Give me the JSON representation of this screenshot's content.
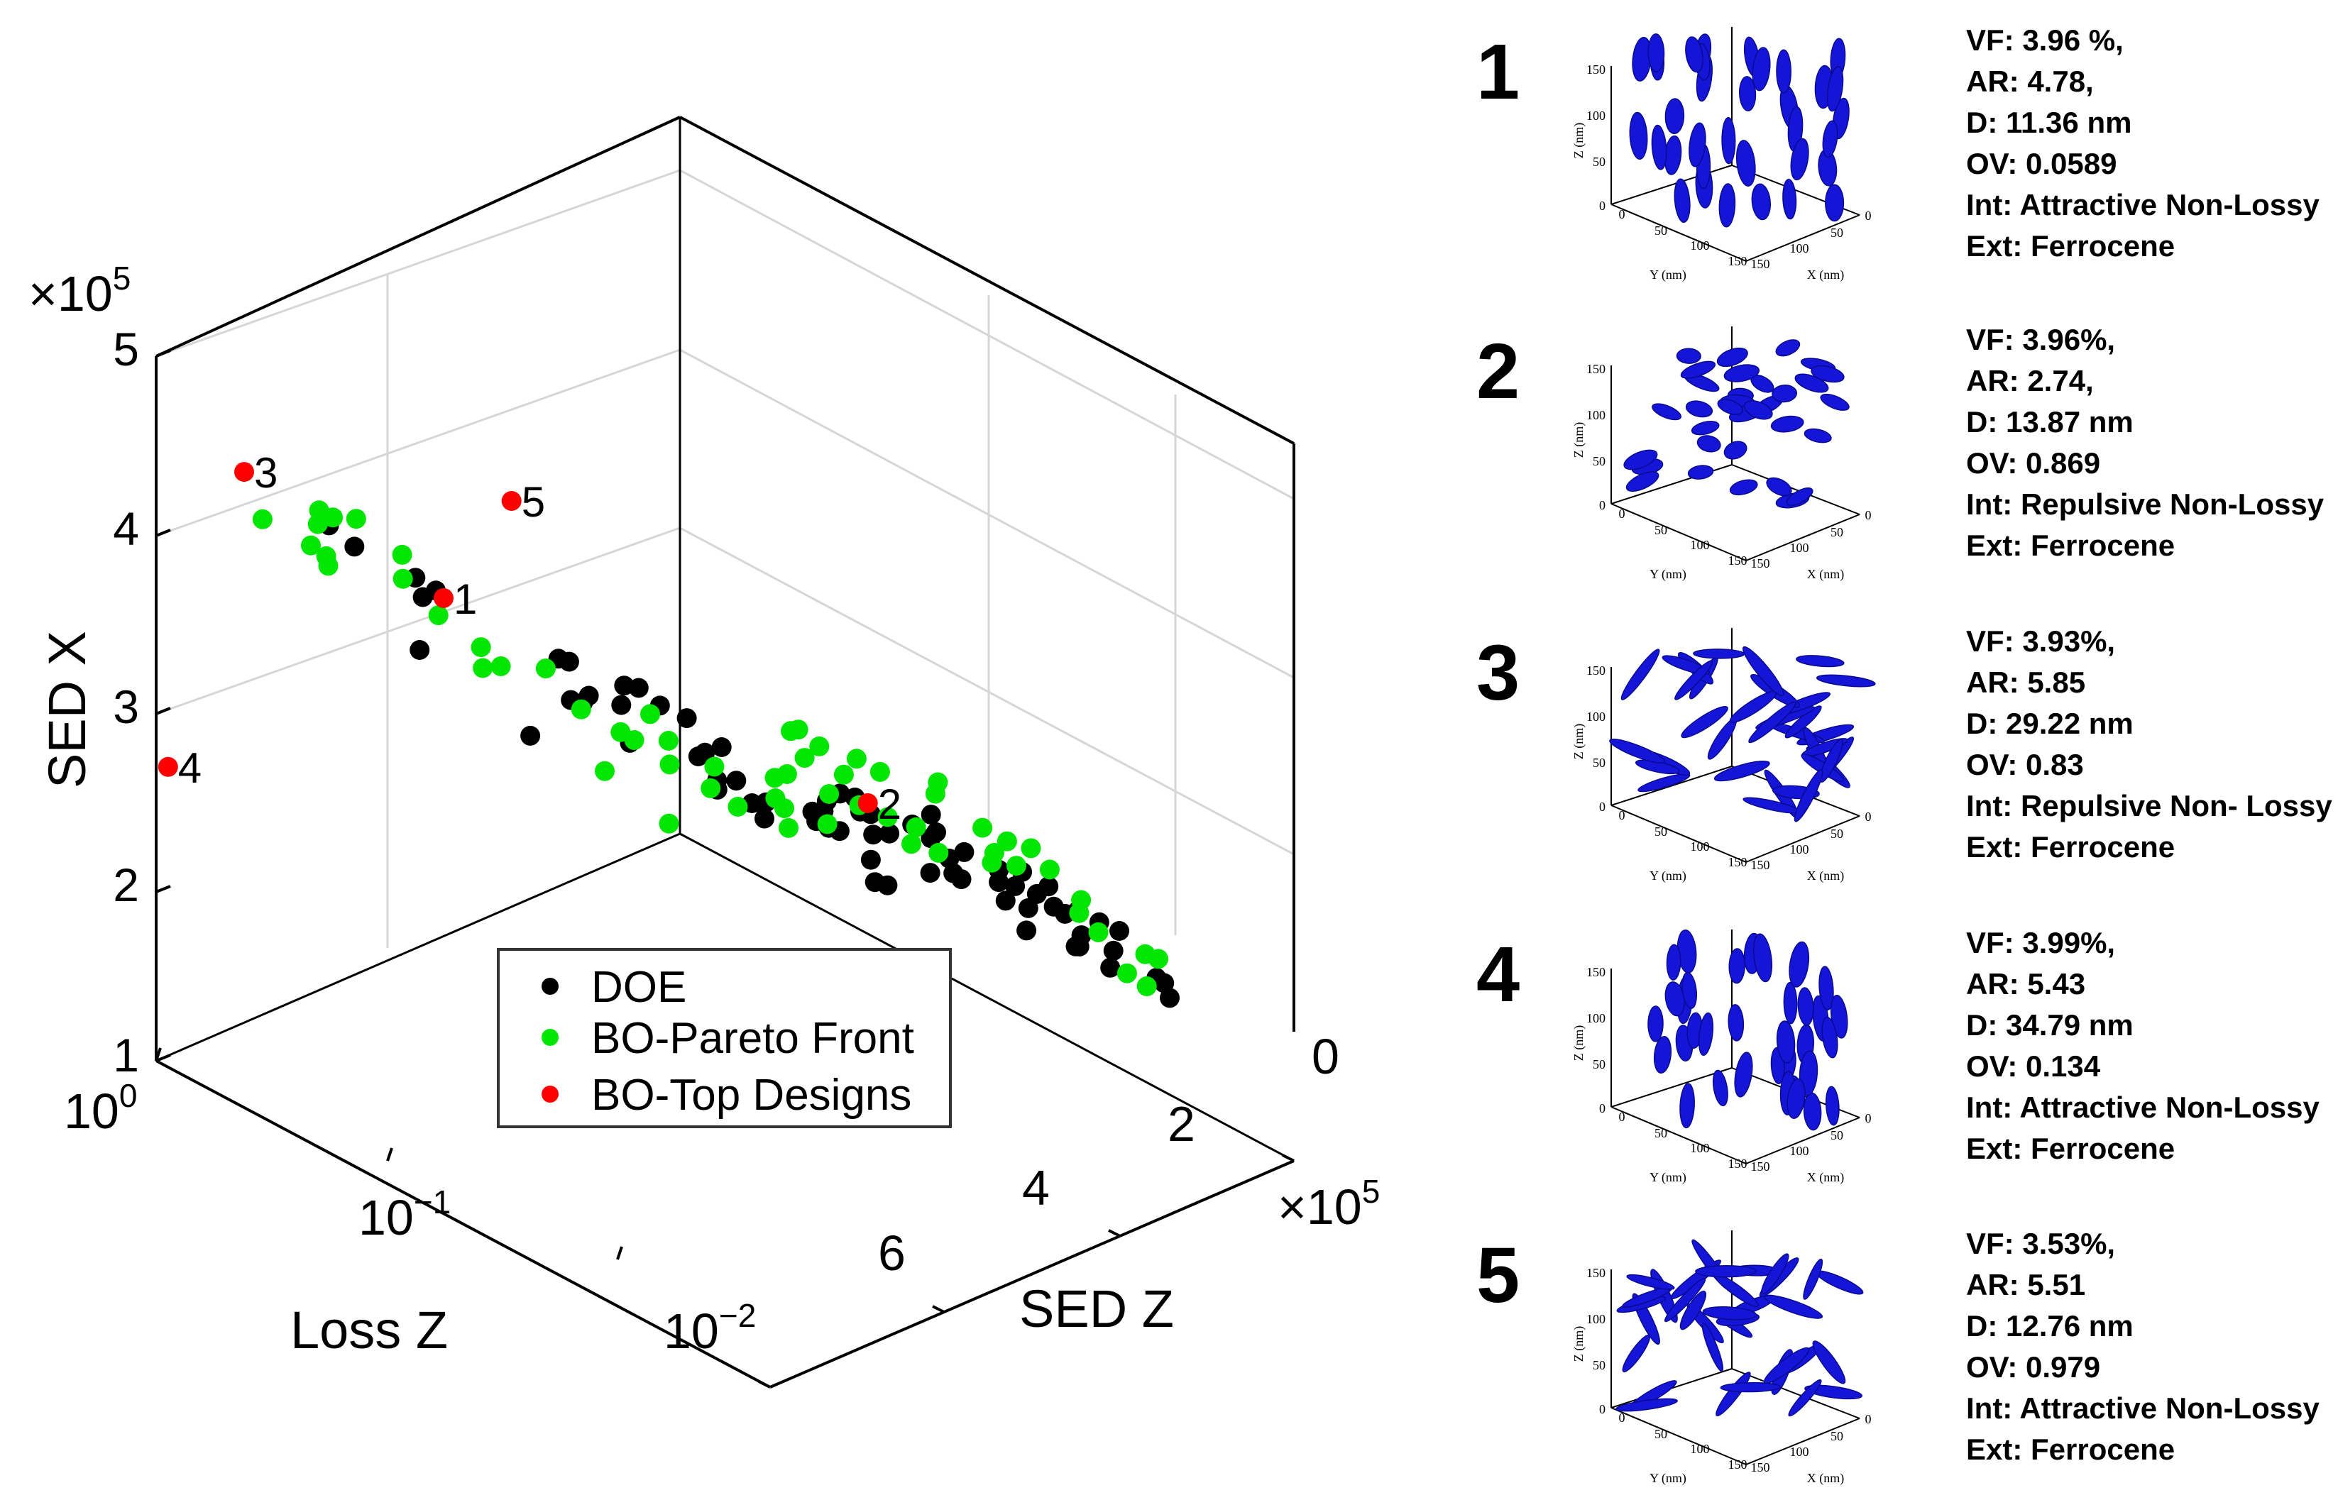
{
  "chart_data": {
    "type": "scatter",
    "dimensions": "3d",
    "axes": {
      "x": {
        "label": "Loss Z",
        "scale": "log",
        "range": [
          0.01,
          1
        ],
        "tick_labels": [
          "10^0",
          "10^-1",
          "10^-2"
        ]
      },
      "y": {
        "label": "SED Z",
        "scale": "linear",
        "range": [
          0,
          7
        ],
        "tick_labels": [
          "0",
          "2",
          "4",
          "6"
        ],
        "multiplier": "×10^5"
      },
      "z": {
        "label": "SED X",
        "scale": "linear",
        "range": [
          1,
          5
        ],
        "tick_labels": [
          "1",
          "2",
          "3",
          "4",
          "5"
        ],
        "multiplier": "×10^5"
      }
    },
    "grid": true,
    "legend": [
      "DOE",
      "BO-Pareto Front",
      "BO-Top Designs"
    ],
    "series": [
      {
        "name": "DOE",
        "color": "#000000",
        "points": [
          [
            0.0313,
            5.43,
            2.19
          ],
          [
            0.0203,
            5.86,
            2.07
          ],
          [
            0.0223,
            5.43,
            2.19
          ],
          [
            0.0181,
            6.29,
            1.97
          ],
          [
            0.0192,
            6.43,
            1.94
          ],
          [
            0.0185,
            6.23,
            1.99
          ],
          [
            0.0242,
            5.7,
            2.1
          ],
          [
            0.0239,
            5.2,
            2.26
          ],
          [
            0.026,
            5.06,
            2.29
          ],
          [
            0.0292,
            4.63,
            2.4
          ],
          [
            0.027,
            5.26,
            2.23
          ],
          [
            0.028,
            4.97,
            2.31
          ],
          [
            0.025,
            5.7,
            2.11
          ],
          [
            0.0229,
            5.98,
            2.04
          ],
          [
            0.0227,
            5.64,
            2.13
          ],
          [
            0.0228,
            5.33,
            2.21
          ],
          [
            0.0263,
            4.89,
            2.34
          ],
          [
            0.0228,
            4.97,
            2.31
          ],
          [
            0.0211,
            5.17,
            2.26
          ],
          [
            0.0188,
            5.6,
            2.14
          ],
          [
            0.0201,
            5.44,
            2.18
          ],
          [
            0.0173,
            5.72,
            2.1
          ],
          [
            0.0308,
            4.38,
            2.46
          ],
          [
            0.0287,
            4.23,
            2.5
          ],
          [
            0.0328,
            4.4,
            2.45
          ],
          [
            0.0415,
            4.02,
            2.55
          ],
          [
            0.0344,
            4.25,
            2.5
          ],
          [
            0.0417,
            4.24,
            2.5
          ],
          [
            0.0418,
            3.85,
            2.6
          ],
          [
            0.0333,
            4.63,
            2.4
          ],
          [
            0.0349,
            4.83,
            2.35
          ],
          [
            0.0296,
            5.12,
            2.26
          ],
          [
            0.0441,
            3.98,
            2.57
          ],
          [
            0.0448,
            3.77,
            2.62
          ],
          [
            0.0463,
            4.19,
            2.51
          ],
          [
            0.0409,
            4.68,
            2.39
          ],
          [
            0.0355,
            4.76,
            2.37
          ],
          [
            0.0543,
            4.37,
            2.46
          ],
          [
            0.0511,
            3.79,
            2.62
          ],
          [
            0.0554,
            4.04,
            2.54
          ],
          [
            0.0551,
            3.85,
            2.6
          ],
          [
            0.0586,
            3.99,
            2.56
          ],
          [
            0.0615,
            3.91,
            2.59
          ],
          [
            0.0594,
            3.82,
            2.61
          ],
          [
            0.0573,
            4.63,
            2.4
          ],
          [
            0.0611,
            4.57,
            2.42
          ],
          [
            0.0754,
            3.6,
            2.67
          ],
          [
            0.0826,
            3.56,
            2.68
          ],
          [
            0.0801,
            3.34,
            2.74
          ],
          [
            0.0838,
            3.72,
            2.64
          ],
          [
            0.0905,
            3.28,
            2.76
          ],
          [
            0.0837,
            3.04,
            2.83
          ],
          [
            0.0952,
            3.35,
            2.74
          ],
          [
            0.0734,
            3.06,
            2.83
          ],
          [
            0.0773,
            2.73,
            2.92
          ],
          [
            0.0894,
            3.05,
            2.83
          ],
          [
            0.0852,
            2.55,
            2.97
          ],
          [
            0.0887,
            2.36,
            3.03
          ],
          [
            0.0963,
            2.3,
            3.05
          ],
          [
            0.1091,
            2.43,
            3.01
          ],
          [
            0.121,
            1.97,
            3.16
          ],
          [
            0.1275,
            2.73,
            2.92
          ],
          [
            0.126,
            1.9,
            3.17
          ],
          [
            0.1273,
            2.26,
            3.06
          ],
          [
            0.1371,
            2.29,
            3.05
          ],
          [
            0.1469,
            2.24,
            3.07
          ],
          [
            0.2174,
            1.21,
            3.52
          ],
          [
            0.2318,
            2.37,
            3.03
          ],
          [
            0.2354,
            1.08,
            3.58
          ],
          [
            0.2458,
            1.22,
            3.52
          ],
          [
            0.3097,
            0.74,
            3.74
          ],
          [
            0.316,
            1.51,
            3.37
          ],
          [
            0.3395,
            0.57,
            3.84
          ]
        ]
      },
      {
        "name": "BO-Pareto Front",
        "color": "#00e600",
        "points": [
          [
            0.0162,
            6.08,
            2.02
          ],
          [
            0.0171,
            6.0,
            2.04
          ],
          [
            0.0206,
            6.26,
            1.98
          ],
          [
            0.0215,
            6.09,
            2.02
          ],
          [
            0.0182,
            5.35,
            2.19
          ],
          [
            0.0186,
            5.02,
            2.28
          ],
          [
            0.0197,
            5.65,
            2.11
          ],
          [
            0.0208,
            4.68,
            2.38
          ],
          [
            0.02,
            5.45,
            2.17
          ],
          [
            0.0242,
            4.73,
            2.37
          ],
          [
            0.0229,
            4.91,
            2.33
          ],
          [
            0.0188,
            4.82,
            2.35
          ],
          [
            0.0225,
            4.5,
            2.43
          ],
          [
            0.0259,
            4.79,
            2.35
          ],
          [
            0.0248,
            4.09,
            2.54
          ],
          [
            0.0228,
            4.01,
            2.56
          ],
          [
            0.0344,
            4.55,
            2.42
          ],
          [
            0.0335,
            4.26,
            2.48
          ],
          [
            0.0386,
            4.39,
            2.46
          ],
          [
            0.038,
            4.1,
            2.53
          ],
          [
            0.0425,
            3.92,
            2.58
          ],
          [
            0.0308,
            3.74,
            2.63
          ],
          [
            0.0395,
            3.65,
            2.66
          ],
          [
            0.0332,
            3.57,
            2.68
          ],
          [
            0.0392,
            3.36,
            2.74
          ],
          [
            0.0404,
            3.16,
            2.79
          ],
          [
            0.046,
            3.4,
            2.73
          ],
          [
            0.0432,
            3.16,
            2.8
          ],
          [
            0.0482,
            3.74,
            2.63
          ],
          [
            0.0562,
            3.46,
            2.71
          ],
          [
            0.0617,
            3.44,
            2.71
          ],
          [
            0.0694,
            3.6,
            2.67
          ],
          [
            0.058,
            3.96,
            2.57
          ],
          [
            0.0693,
            3.7,
            2.64
          ],
          [
            0.0761,
            3.87,
            2.6
          ],
          [
            0.0865,
            3.19,
            2.8
          ],
          [
            0.0929,
            3.55,
            2.69
          ],
          [
            0.095,
            2.58,
            2.96
          ],
          [
            0.0988,
            3.32,
            2.75
          ],
          [
            0.0988,
            2.84,
            2.89
          ],
          [
            0.1124,
            3.02,
            2.84
          ],
          [
            0.1217,
            2.72,
            2.92
          ],
          [
            0.1271,
            2.62,
            2.95
          ],
          [
            0.1441,
            1.93,
            3.16
          ],
          [
            0.1448,
            2.34,
            3.04
          ],
          [
            0.1587,
            3.46,
            2.72
          ],
          [
            0.1745,
            2.85,
            2.88
          ],
          [
            0.2149,
            1.73,
            3.22
          ],
          [
            0.1906,
            1.78,
            3.21
          ],
          [
            0.1945,
            1.58,
            3.27
          ],
          [
            0.2209,
            1.26,
            3.4
          ],
          [
            0.2284,
            0.89,
            3.65
          ],
          [
            0.2566,
            1.05,
            3.59
          ],
          [
            0.2716,
            0.59,
            3.82
          ],
          [
            0.3205,
            0.54,
            3.86
          ],
          [
            0.343,
            0.47,
            3.9
          ],
          [
            0.3659,
            0.54,
            3.86
          ],
          [
            0.3937,
            0.73,
            3.75
          ],
          [
            0.4048,
            0.79,
            3.72
          ],
          [
            0.417,
            0.63,
            3.8
          ],
          [
            0.5219,
            0.37,
            3.94
          ]
        ]
      },
      {
        "name": "BO-Top Designs",
        "color": "#ff0000",
        "points": [
          {
            "label": "1",
            "values": [
              0.2,
              1.19,
              3.45
            ]
          },
          {
            "label": "2",
            "values": [
              0.04,
              3.94,
              2.58
            ]
          },
          {
            "label": "3",
            "values": [
              0.5138,
              0.14,
              4.14
            ]
          },
          {
            "label": "4",
            "values": [
              0.9434,
              0.06,
              2.64
            ]
          },
          {
            "label": "5",
            "values": [
              0.1198,
              1.3,
              3.88
            ]
          }
        ]
      }
    ]
  },
  "panels": [
    {
      "number": "1",
      "vf": "VF: 3.96 %,",
      "ar": "AR: 4.78,",
      "d": "D: 11.36 nm",
      "ov": "OV: 0.0589",
      "int": "Int: Attractive Non-Lossy",
      "ext": "Ext: Ferrocene"
    },
    {
      "number": "2",
      "vf": "VF: 3.96%,",
      "ar": "AR: 2.74,",
      "d": "D: 13.87 nm",
      "ov": "OV: 0.869",
      "int": "Int: Repulsive Non-Lossy",
      "ext": "Ext: Ferrocene"
    },
    {
      "number": "3",
      "vf": "VF: 3.93%,",
      "ar": "AR: 5.85",
      "d": "D: 29.22 nm",
      "ov": "OV: 0.83",
      "int": "Int: Repulsive Non- Lossy",
      "ext": "Ext: Ferrocene"
    },
    {
      "number": "4",
      "vf": "VF: 3.99%,",
      "ar": "AR: 5.43",
      "d": "D: 34.79 nm",
      "ov": "OV: 0.134",
      "int": "Int: Attractive Non-Lossy",
      "ext": "Ext: Ferrocene"
    },
    {
      "number": "5",
      "vf": "VF: 3.53%,",
      "ar": "AR: 5.51",
      "d": "D: 12.76 nm",
      "ov": "OV: 0.979",
      "int": "Int: Attractive Non-Lossy",
      "ext": "Ext: Ferrocene"
    }
  ],
  "micro_axes": {
    "z_label": "Z (nm)",
    "y_label": "Y (nm)",
    "x_label": "X (nm)",
    "z_ticks": [
      "150",
      "100",
      "50",
      "0"
    ],
    "y_ticks": [
      "0",
      "50",
      "100",
      "150"
    ],
    "x_ticks": [
      "150",
      "100",
      "50",
      "0"
    ]
  },
  "colors": {
    "inclusion": "#1515d8",
    "doe": "#000000",
    "pareto": "#00e600",
    "top": "#ff0000"
  }
}
